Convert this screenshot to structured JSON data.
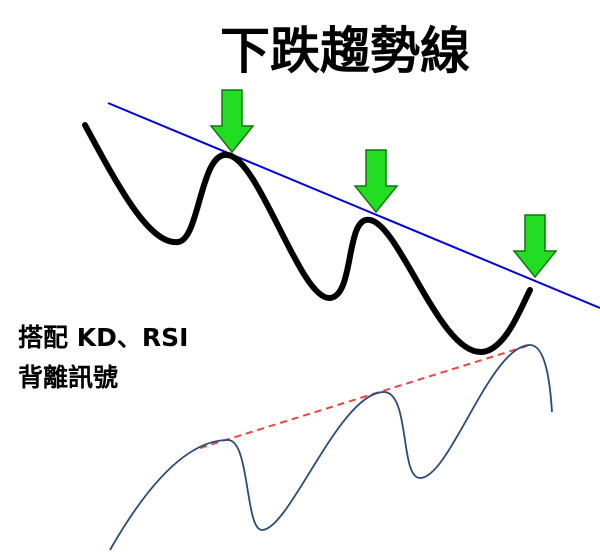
{
  "title": "下跌趨勢線",
  "note": {
    "lines": [
      "搭配 KD、RSI",
      "背離訊號"
    ]
  }
}
